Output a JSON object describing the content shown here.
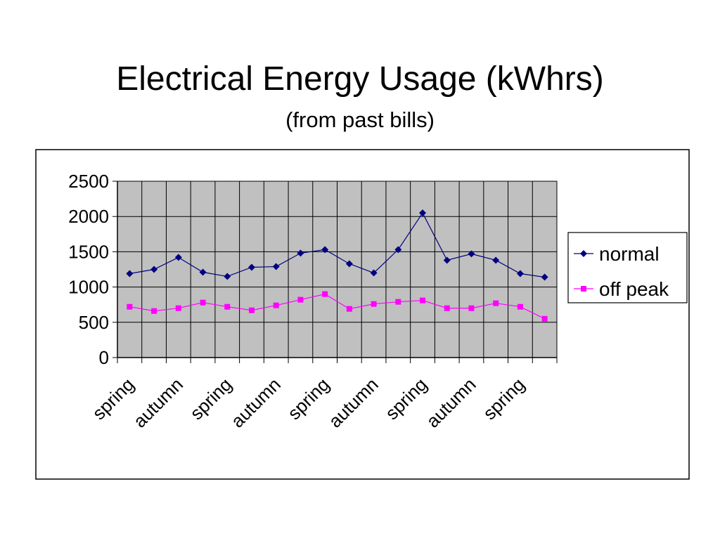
{
  "chart_data": {
    "type": "line",
    "title": "Electrical Energy Usage (kWhrs)",
    "subtitle": "(from past bills)",
    "categories": [
      "spring",
      null,
      "autumn",
      null,
      "spring",
      null,
      "autumn",
      null,
      "spring",
      null,
      "autumn",
      null,
      "spring",
      null,
      "autumn",
      null,
      "spring",
      null
    ],
    "series": [
      {
        "name": "normal",
        "color": "#000080",
        "marker": "diamond",
        "values": [
          1190,
          1250,
          1420,
          1210,
          1150,
          1280,
          1290,
          1480,
          1530,
          1330,
          1200,
          1530,
          2050,
          1380,
          1470,
          1380,
          1190,
          1140
        ]
      },
      {
        "name": "off peak",
        "color": "#ff00ff",
        "marker": "square",
        "values": [
          720,
          660,
          700,
          780,
          720,
          670,
          740,
          820,
          900,
          690,
          760,
          790,
          810,
          700,
          700,
          770,
          720,
          550
        ]
      }
    ],
    "ylim": [
      0,
      2500
    ],
    "yticks": [
      0,
      500,
      1000,
      1500,
      2000,
      2500
    ],
    "grid": true,
    "legend": "right",
    "plot_background": "#c0c0c0"
  }
}
